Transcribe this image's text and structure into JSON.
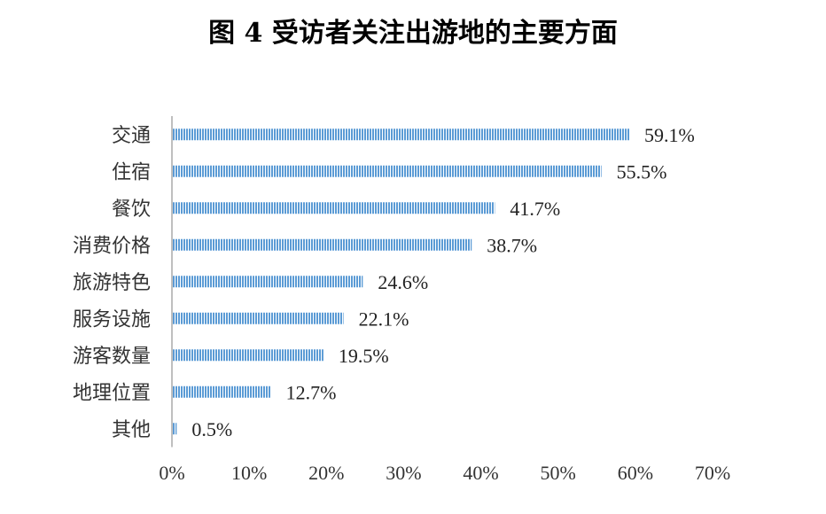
{
  "chart_data": {
    "type": "bar",
    "orientation": "horizontal",
    "title": "图 4  受访者关注出游地的主要方面",
    "categories": [
      "交通",
      "住宿",
      "餐饮",
      "消费价格",
      "旅游特色",
      "服务设施",
      "游客数量",
      "地理位置",
      "其他"
    ],
    "values": [
      59.1,
      55.5,
      41.7,
      38.7,
      24.6,
      22.1,
      19.5,
      12.7,
      0.5
    ],
    "value_labels": [
      "59.1%",
      "55.5%",
      "41.7%",
      "38.7%",
      "24.6%",
      "22.1%",
      "19.5%",
      "12.7%",
      "0.5%"
    ],
    "xlim": [
      0,
      70
    ],
    "x_ticks": [
      "0%",
      "10%",
      "20%",
      "30%",
      "40%",
      "50%",
      "60%",
      "70%"
    ],
    "xlabel": "",
    "ylabel": "",
    "grid": false,
    "bar_color": "#5b9bd5",
    "bar_stripe_color": "#ffffff"
  }
}
